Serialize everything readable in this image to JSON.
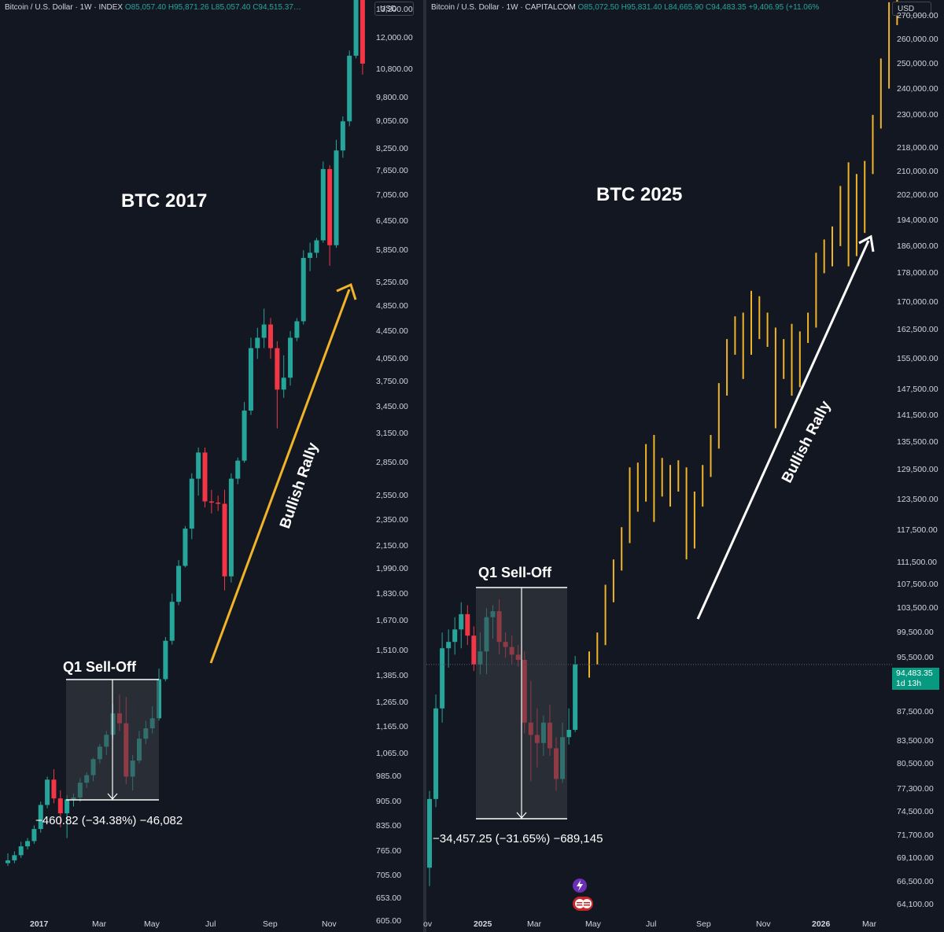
{
  "colors": {
    "background": "#131722",
    "up": "#26a69a",
    "down": "#f23645",
    "bar2025": "#f0b429",
    "arrow2017": "#f0b429",
    "arrow2025": "#ffffff",
    "selloff_box": "#3d4047"
  },
  "left": {
    "header": {
      "symbol": "Bitcoin / U.S. Dollar · 1W · INDEX",
      "o": "O85,057.40",
      "h": "H95,871.26",
      "l": "L85,057.40",
      "c": "C94,515.37…"
    },
    "currency": "USD",
    "title": "BTC 2017",
    "selloff_label": "Q1 Sell-Off",
    "measure_text": "−460.82 (−34.38%) −46,082",
    "rally_label": "Bullish Rally",
    "x_labels": [
      "2017",
      "Mar",
      "May",
      "Jul",
      "Sep",
      "Nov"
    ]
  },
  "right": {
    "header": {
      "symbol": "Bitcoin / U.S. Dollar · 1W · CAPITALCOM",
      "o": "O85,072.50",
      "h": "H95,831.40",
      "l": "L84,665.90",
      "c": "C94,483.35",
      "chg": "+9,406.95 (+11.06%"
    },
    "currency": "USD",
    "title": "BTC 2025",
    "selloff_label": "Q1 Sell-Off",
    "measure_text": "−34,457.25 (−31.65%) −689,145",
    "rally_label": "Bullish Rally",
    "price_tag": "94,483.35",
    "price_tag_time": "1d 13h",
    "x_labels": [
      "ov",
      "2025",
      "Mar",
      "May",
      "Jul",
      "Sep",
      "Nov",
      "2026",
      "Mar"
    ]
  },
  "chart_data": [
    {
      "type": "candlestick",
      "title": "BTC 2017",
      "interval": "1W",
      "scale": "log",
      "ylim": [
        590,
        14200
      ],
      "y_ticks": [
        13200,
        12000,
        10800,
        9800,
        9050,
        8250,
        7650,
        7050,
        6450,
        5850,
        5250,
        4850,
        4450,
        4050,
        3750,
        3450,
        3150,
        2850,
        2550,
        2350,
        2150,
        1990,
        1830,
        1670,
        1510,
        1385,
        1265,
        1165,
        1065,
        985,
        905,
        835,
        765,
        705,
        653,
        605
      ],
      "y_tick_labels": [
        "13,200.00",
        "12,000.00",
        "10,800.00",
        "9,800.00",
        "9,050.00",
        "8,250.00",
        "7,650.00",
        "7,050.00",
        "6,450.00",
        "5,850.00",
        "5,250.00",
        "4,850.00",
        "4,450.00",
        "4,050.00",
        "3,750.00",
        "3,450.00",
        "3,150.00",
        "2,850.00",
        "2,550.00",
        "2,350.00",
        "2,150.00",
        "1,990.00",
        "1,830.00",
        "1,670.00",
        "1,510.00",
        "1,385.00",
        "1,265.00",
        "1,165.00",
        "1,065.00",
        "985.00",
        "905.00",
        "835.00",
        "765.00",
        "705.00",
        "653.00",
        "605.00"
      ],
      "ohlc": [
        [
          735,
          760,
          728,
          742
        ],
        [
          742,
          765,
          735,
          755
        ],
        [
          755,
          790,
          748,
          778
        ],
        [
          778,
          800,
          770,
          792
        ],
        [
          792,
          835,
          785,
          825
        ],
        [
          825,
          905,
          815,
          895
        ],
        [
          895,
          985,
          885,
          975
        ],
        [
          975,
          1010,
          900,
          915
        ],
        [
          915,
          940,
          830,
          870
        ],
        [
          870,
          925,
          800,
          912
        ],
        [
          912,
          930,
          890,
          918
        ],
        [
          918,
          980,
          905,
          965
        ],
        [
          965,
          1000,
          948,
          990
        ],
        [
          990,
          1050,
          970,
          1045
        ],
        [
          1045,
          1100,
          1030,
          1090
        ],
        [
          1090,
          1150,
          1060,
          1135
        ],
        [
          1135,
          1260,
          1120,
          1220
        ],
        [
          1220,
          1300,
          1150,
          1180
        ],
        [
          1180,
          1290,
          960,
          985
        ],
        [
          985,
          1060,
          940,
          1040
        ],
        [
          1040,
          1150,
          1030,
          1120
        ],
        [
          1120,
          1190,
          1100,
          1160
        ],
        [
          1160,
          1250,
          1140,
          1200
        ],
        [
          1200,
          1420,
          1190,
          1370
        ],
        [
          1370,
          1580,
          1360,
          1560
        ],
        [
          1560,
          1830,
          1540,
          1780
        ],
        [
          1780,
          2050,
          1760,
          2010
        ],
        [
          2010,
          2300,
          2000,
          2280
        ],
        [
          2280,
          2750,
          2200,
          2700
        ],
        [
          2700,
          3000,
          2550,
          2950
        ],
        [
          2950,
          3000,
          2450,
          2500
        ],
        [
          2500,
          2600,
          2400,
          2490
        ],
        [
          2490,
          2550,
          2420,
          2480
        ],
        [
          2480,
          2600,
          1850,
          1940
        ],
        [
          1940,
          2750,
          1900,
          2700
        ],
        [
          2700,
          2900,
          2650,
          2870
        ],
        [
          2870,
          3500,
          2850,
          3400
        ],
        [
          3400,
          4350,
          3350,
          4200
        ],
        [
          4200,
          4500,
          4050,
          4350
        ],
        [
          4350,
          4800,
          4200,
          4550
        ],
        [
          4550,
          4650,
          4050,
          4200
        ],
        [
          4200,
          4300,
          3200,
          3650
        ],
        [
          3650,
          4100,
          3550,
          3800
        ],
        [
          3800,
          4450,
          3700,
          4350
        ],
        [
          4350,
          4650,
          4300,
          4600
        ],
        [
          4600,
          5850,
          4550,
          5700
        ],
        [
          5700,
          6000,
          5450,
          5800
        ],
        [
          5800,
          6100,
          5700,
          6050
        ],
        [
          6050,
          7900,
          6000,
          7700
        ],
        [
          7700,
          7800,
          5550,
          5950
        ],
        [
          5950,
          8500,
          5900,
          8200
        ],
        [
          8200,
          9200,
          8000,
          9050
        ],
        [
          9050,
          11500,
          8900,
          11300
        ],
        [
          11300,
          14000,
          11200,
          13800
        ],
        [
          13800,
          14200,
          10600,
          11000
        ]
      ]
    },
    {
      "type": "ohlc",
      "title": "BTC 2025",
      "interval": "1W",
      "scale": "log",
      "ylim": [
        63500,
        282000
      ],
      "last_price": 94483.35,
      "y_ticks": [
        270000,
        260000,
        250000,
        240000,
        230000,
        218000,
        210000,
        202000,
        194000,
        186000,
        178000,
        170000,
        162500,
        155000,
        147500,
        141500,
        135500,
        129500,
        123500,
        117500,
        111500,
        107500,
        103500,
        99500,
        95500,
        91500,
        87500,
        83500,
        80500,
        77300,
        74500,
        71700,
        69100,
        66500,
        64100
      ],
      "y_tick_labels": [
        "270,000.00",
        "260,000.00",
        "250,000.00",
        "240,000.00",
        "230,000.00",
        "218,000.00",
        "210,000.00",
        "202,000.00",
        "194,000.00",
        "186,000.00",
        "178,000.00",
        "170,000.00",
        "162,500.00",
        "155,000.00",
        "147,500.00",
        "141,500.00",
        "135,500.00",
        "129,500.00",
        "123,500.00",
        "117,500.00",
        "111,500.00",
        "107,500.00",
        "103,500.00",
        "99,500.00",
        "95,500.00",
        "91,500.00",
        "87,500.00",
        "83,500.00",
        "80,500.00",
        "77,300.00",
        "74,500.00",
        "71,700.00",
        "69,100.00",
        "66,500.00",
        "64,100.00"
      ],
      "history_ohlc": [
        [
          68000,
          77000,
          66000,
          76000
        ],
        [
          76000,
          90000,
          75000,
          88000
        ],
        [
          88000,
          99500,
          86000,
          97000
        ],
        [
          97000,
          100000,
          94000,
          98000
        ],
        [
          98000,
          102000,
          96000,
          100000
        ],
        [
          100000,
          104500,
          97000,
          102500
        ],
        [
          102500,
          104000,
          97500,
          99000
        ],
        [
          99000,
          100500,
          93500,
          94500
        ],
        [
          94500,
          99500,
          93000,
          96500
        ],
        [
          96500,
          103500,
          93000,
          102000
        ],
        [
          102000,
          104000,
          98500,
          103000
        ],
        [
          103000,
          105000,
          96000,
          98000
        ],
        [
          98000,
          99500,
          95500,
          97200
        ],
        [
          97200,
          99000,
          94500,
          96000
        ],
        [
          96000,
          97500,
          94200,
          95200
        ],
        [
          95200,
          96500,
          84500,
          86000
        ],
        [
          86000,
          92000,
          78200,
          84300
        ],
        [
          84300,
          88000,
          80000,
          83200
        ],
        [
          83200,
          87000,
          81500,
          86000
        ],
        [
          86000,
          88500,
          81500,
          82500
        ],
        [
          82500,
          84000,
          77000,
          78500
        ],
        [
          78500,
          86000,
          78000,
          84000
        ],
        [
          84000,
          88000,
          83000,
          85000
        ],
        [
          85000,
          95800,
          84700,
          94500
        ]
      ],
      "projection_ohlc": [
        [
          94500,
          96500,
          92500,
          95000
        ],
        [
          95000,
          99500,
          94500,
          98000
        ],
        [
          98000,
          107500,
          97500,
          106000
        ],
        [
          106000,
          112000,
          104500,
          111000
        ],
        [
          111000,
          118000,
          110000,
          116000
        ],
        [
          116000,
          130000,
          115000,
          127000
        ],
        [
          127000,
          131000,
          121000,
          125000
        ],
        [
          125000,
          135000,
          123000,
          132000
        ],
        [
          132000,
          137000,
          119000,
          128000
        ],
        [
          128000,
          132000,
          124000,
          127000
        ],
        [
          127000,
          130500,
          122000,
          126000
        ],
        [
          126000,
          131500,
          125000,
          129000
        ],
        [
          129000,
          130000,
          112000,
          115000
        ],
        [
          115000,
          125000,
          114000,
          123000
        ],
        [
          123000,
          130500,
          122000,
          129000
        ],
        [
          129000,
          137000,
          128000,
          135500
        ],
        [
          135500,
          149000,
          134000,
          147000
        ],
        [
          147000,
          160000,
          146000,
          158000
        ],
        [
          158000,
          166000,
          156000,
          163000
        ],
        [
          163000,
          167000,
          150000,
          157000
        ],
        [
          157000,
          173000,
          156000,
          170000
        ],
        [
          170000,
          171500,
          160000,
          164000
        ],
        [
          164000,
          167000,
          158000,
          160000
        ],
        [
          160000,
          163000,
          138500,
          152000
        ],
        [
          152000,
          160000,
          150000,
          158000
        ],
        [
          158000,
          164000,
          146000,
          150000
        ],
        [
          150000,
          162000,
          148000,
          160000
        ],
        [
          160000,
          167000,
          159000,
          165000
        ],
        [
          165000,
          184000,
          163000,
          182000
        ],
        [
          182000,
          188000,
          178000,
          186000
        ],
        [
          186000,
          192000,
          180000,
          188000
        ],
        [
          188000,
          205000,
          186000,
          202000
        ],
        [
          202000,
          213000,
          180000,
          185000
        ],
        [
          185000,
          209000,
          183000,
          206000
        ],
        [
          206000,
          213500,
          190000,
          210000
        ],
        [
          210000,
          230000,
          209000,
          226000
        ],
        [
          226000,
          252000,
          225000,
          248000
        ],
        [
          248000,
          276000,
          240000,
          272000
        ],
        [
          272000,
          282000,
          266000,
          268000
        ]
      ]
    }
  ]
}
